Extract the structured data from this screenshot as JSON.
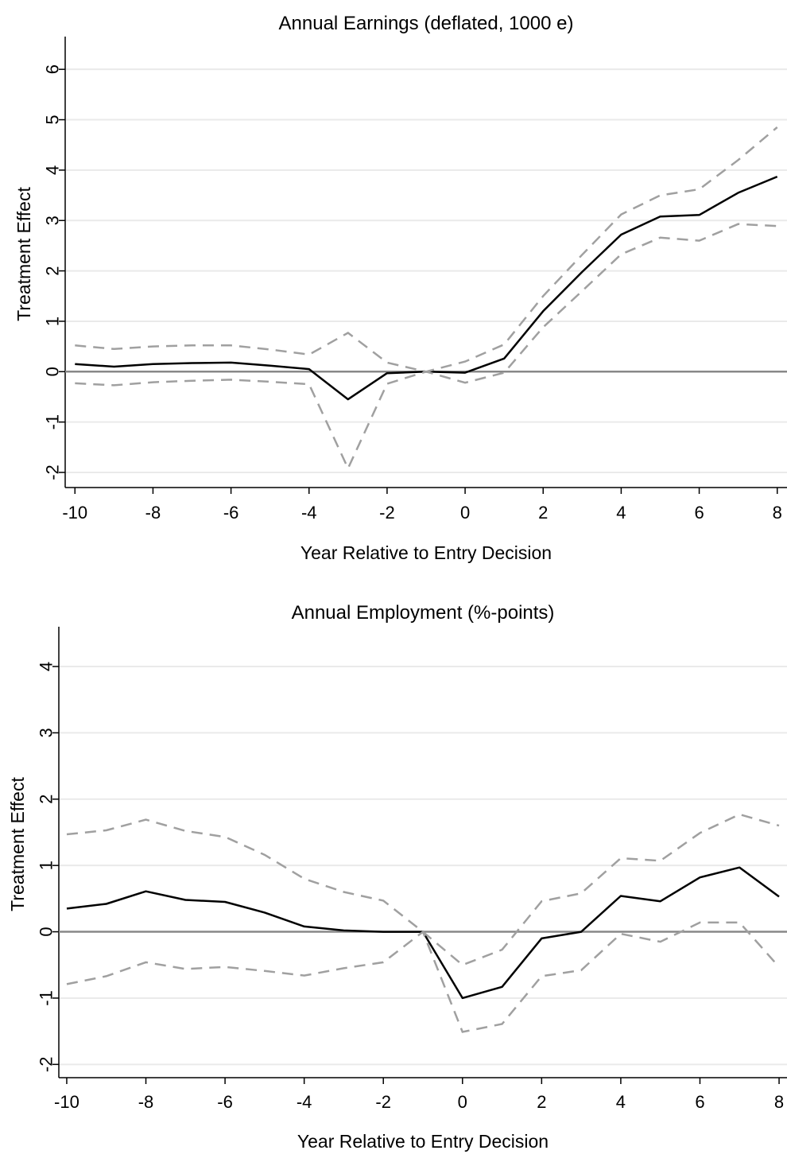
{
  "colors": {
    "estimate": "#000000",
    "confidence_band": "#a0a0a0",
    "zero_line": "#888888",
    "grid": "#eaeaea"
  },
  "chart_data": [
    {
      "type": "line",
      "title": "Annual Earnings (deflated, 1000 e)",
      "xlabel": "Year Relative to Entry Decision",
      "ylabel": "Treatment Effect",
      "xlim": [
        -10,
        8
      ],
      "ylim": [
        -2,
        6
      ],
      "xticks": [
        "-10",
        "-8",
        "-6",
        "-4",
        "-2",
        "0",
        "2",
        "4",
        "6",
        "8"
      ],
      "yticks": [
        "-2",
        "-1",
        "0",
        "1",
        "2",
        "3",
        "4",
        "5",
        "6"
      ],
      "grid": true,
      "reference_line": 0,
      "x": [
        -10,
        -9,
        -8,
        -7,
        -6,
        -5,
        -4,
        -3,
        -2,
        -1,
        0,
        1,
        2,
        3,
        4,
        5,
        6,
        7,
        8
      ],
      "series": [
        {
          "role": "estimate",
          "style": "solid",
          "values": [
            0.15,
            0.1,
            0.15,
            0.17,
            0.18,
            0.12,
            0.05,
            -0.55,
            -0.03,
            0.0,
            -0.02,
            0.26,
            1.2,
            1.98,
            2.72,
            3.08,
            3.11,
            3.55,
            3.87
          ]
        },
        {
          "role": "upper",
          "style": "dashed",
          "values": [
            0.52,
            0.45,
            0.5,
            0.52,
            0.52,
            0.44,
            0.34,
            0.77,
            0.18,
            0.0,
            0.2,
            0.54,
            1.5,
            2.32,
            3.12,
            3.5,
            3.62,
            4.2,
            4.85
          ]
        },
        {
          "role": "lower",
          "style": "dashed",
          "values": [
            -0.23,
            -0.27,
            -0.21,
            -0.18,
            -0.16,
            -0.2,
            -0.25,
            -1.92,
            -0.24,
            0.0,
            -0.22,
            -0.02,
            0.88,
            1.6,
            2.33,
            2.66,
            2.6,
            2.93,
            2.89
          ]
        }
      ]
    },
    {
      "type": "line",
      "title": "Annual Employment (%-points)",
      "xlabel": "Year Relative to Entry Decision",
      "ylabel": "Treatment Effect",
      "xlim": [
        -10,
        8
      ],
      "ylim": [
        -2,
        4
      ],
      "xticks": [
        "-10",
        "-8",
        "-6",
        "-4",
        "-2",
        "0",
        "2",
        "4",
        "6",
        "8"
      ],
      "yticks": [
        "-2",
        "-1",
        "0",
        "1",
        "2",
        "3",
        "4"
      ],
      "grid": true,
      "reference_line": 0,
      "x": [
        -10,
        -9,
        -8,
        -7,
        -6,
        -5,
        -4,
        -3,
        -2,
        -1,
        0,
        1,
        2,
        3,
        4,
        5,
        6,
        7,
        8
      ],
      "series": [
        {
          "role": "estimate",
          "style": "solid",
          "values": [
            0.35,
            0.42,
            0.61,
            0.48,
            0.45,
            0.29,
            0.08,
            0.02,
            0.0,
            0.0,
            -1.0,
            -0.83,
            -0.1,
            0.0,
            0.54,
            0.46,
            0.82,
            0.97,
            0.53
          ]
        },
        {
          "role": "upper",
          "style": "dashed",
          "values": [
            1.47,
            1.53,
            1.69,
            1.52,
            1.43,
            1.16,
            0.8,
            0.6,
            0.47,
            0.0,
            -0.5,
            -0.27,
            0.46,
            0.58,
            1.11,
            1.07,
            1.49,
            1.77,
            1.6
          ]
        },
        {
          "role": "lower",
          "style": "dashed",
          "values": [
            -0.79,
            -0.67,
            -0.46,
            -0.56,
            -0.53,
            -0.59,
            -0.66,
            -0.55,
            -0.46,
            0.0,
            -1.51,
            -1.39,
            -0.67,
            -0.58,
            -0.03,
            -0.15,
            0.14,
            0.14,
            -0.53
          ]
        }
      ]
    }
  ]
}
